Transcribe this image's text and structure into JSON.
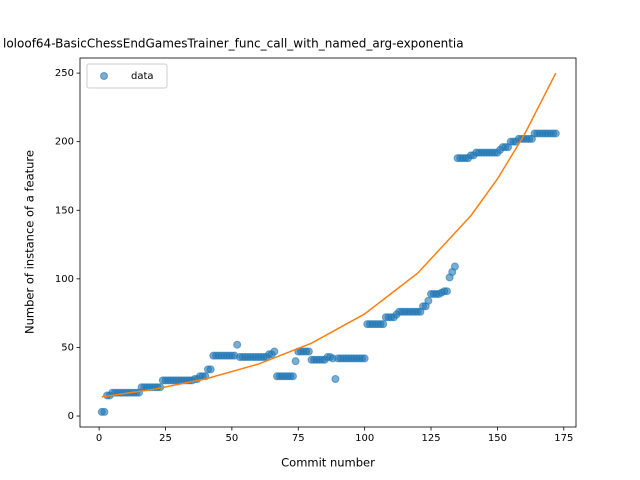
{
  "chart_data": {
    "type": "scatter",
    "title": "loloof64-BasicChessEndGamesTrainer_func_call_with_named_arg-exponentia",
    "xlabel": "Commit number",
    "ylabel": "Number of instance of a feature",
    "xlim": [
      -7.2,
      179.6
    ],
    "ylim": [
      -8,
      261
    ],
    "xticks": [
      0,
      25,
      50,
      75,
      100,
      125,
      150,
      175
    ],
    "yticks": [
      0,
      50,
      100,
      150,
      200,
      250
    ],
    "legend": "upper left",
    "series": [
      {
        "name": "data",
        "type": "scatter",
        "color": "#1f77b4",
        "opacity": 0.6,
        "x": [
          1,
          2,
          3,
          4,
          5,
          6,
          7,
          8,
          9,
          10,
          11,
          12,
          13,
          14,
          15,
          16,
          17,
          18,
          19,
          20,
          21,
          22,
          23,
          24,
          25,
          26,
          27,
          28,
          29,
          30,
          31,
          32,
          33,
          34,
          35,
          36,
          37,
          38,
          39,
          40,
          41,
          42,
          43,
          44,
          45,
          46,
          47,
          48,
          49,
          50,
          51,
          52,
          53,
          54,
          55,
          56,
          57,
          58,
          59,
          60,
          61,
          62,
          63,
          64,
          65,
          66,
          67,
          68,
          69,
          70,
          71,
          72,
          73,
          74,
          75,
          76,
          77,
          78,
          79,
          80,
          81,
          82,
          83,
          84,
          85,
          86,
          87,
          88,
          89,
          90,
          91,
          92,
          93,
          94,
          95,
          96,
          97,
          98,
          99,
          100,
          101,
          102,
          103,
          104,
          105,
          106,
          107,
          108,
          109,
          110,
          111,
          112,
          113,
          114,
          115,
          116,
          117,
          118,
          119,
          120,
          121,
          122,
          123,
          124,
          125,
          126,
          127,
          128,
          129,
          130,
          131,
          132,
          133,
          134,
          135,
          136,
          137,
          138,
          139,
          140,
          141,
          142,
          143,
          144,
          145,
          146,
          147,
          148,
          149,
          150,
          151,
          152,
          153,
          154,
          155,
          156,
          157,
          158,
          159,
          160,
          161,
          162,
          163,
          164,
          165,
          166,
          167,
          168,
          169,
          170,
          171,
          172
        ],
        "values": [
          3,
          3,
          15,
          15,
          17,
          17,
          17,
          17,
          17,
          17,
          17,
          17,
          17,
          17,
          17,
          21,
          21,
          21,
          21,
          21,
          21,
          21,
          21,
          26,
          26,
          26,
          26,
          26,
          26,
          26,
          26,
          26,
          26,
          26,
          26,
          27,
          27,
          29,
          29,
          29,
          34,
          34,
          44,
          44,
          44,
          44,
          44,
          44,
          44,
          44,
          44,
          52,
          43,
          43,
          43,
          43,
          43,
          43,
          43,
          43,
          43,
          43,
          43,
          45,
          45,
          47,
          29,
          29,
          29,
          29,
          29,
          29,
          29,
          40,
          47,
          47,
          47,
          47,
          47,
          41,
          41,
          41,
          41,
          41,
          41,
          43,
          43,
          42,
          27,
          42,
          42,
          42,
          42,
          42,
          42,
          42,
          42,
          42,
          42,
          42,
          67,
          67,
          67,
          67,
          67,
          67,
          67,
          72,
          72,
          72,
          72,
          74,
          76,
          76,
          76,
          76,
          76,
          76,
          76,
          76,
          76,
          80,
          80,
          84,
          89,
          89,
          89,
          89,
          90,
          91,
          91,
          101,
          105,
          109,
          188,
          188,
          188,
          188,
          188,
          190,
          190,
          192,
          192,
          192,
          192,
          192,
          192,
          192,
          192,
          192,
          194,
          196,
          196,
          196,
          200,
          200,
          200,
          202,
          202,
          202,
          202,
          202,
          202,
          206,
          206,
          206,
          206,
          206,
          206,
          206,
          206,
          206
        ]
      },
      {
        "type": "line",
        "color": "#ff7f0e",
        "x": [
          1,
          20,
          40,
          60,
          80,
          100,
          120,
          140,
          150,
          160,
          172
        ],
        "values": [
          14.0,
          19.3,
          27.0,
          37.9,
          53.1,
          74.4,
          104.2,
          146,
          172.8,
          204.6,
          250
        ]
      }
    ]
  }
}
